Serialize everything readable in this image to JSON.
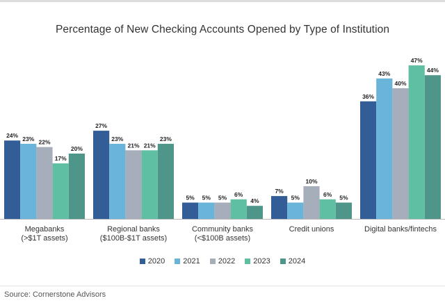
{
  "chart_data": {
    "type": "bar",
    "title": "Percentage of New Checking Accounts Opened by Type of Institution",
    "categories": [
      [
        "Megabanks",
        "(>$1T assets)"
      ],
      [
        "Regional banks",
        "($100B-$1T assets)"
      ],
      [
        "Community banks",
        "(<$100B assets)"
      ],
      [
        "Credit unions",
        ""
      ],
      [
        "Digital banks/fintechs",
        ""
      ]
    ],
    "series": [
      {
        "name": "2020",
        "color": "#335d96",
        "values": [
          24,
          27,
          5,
          7,
          36
        ]
      },
      {
        "name": "2021",
        "color": "#6ab4d9",
        "values": [
          23,
          23,
          5,
          5,
          43
        ]
      },
      {
        "name": "2022",
        "color": "#a6adbb",
        "values": [
          22,
          21,
          5,
          10,
          40
        ]
      },
      {
        "name": "2023",
        "color": "#5fbfa3",
        "values": [
          17,
          21,
          6,
          6,
          47
        ]
      },
      {
        "name": "2024",
        "color": "#4e968a",
        "values": [
          20,
          23,
          4,
          5,
          44
        ]
      }
    ],
    "value_suffix": "%",
    "ylim": [
      0,
      50
    ],
    "grid": false,
    "legend": "bottom"
  },
  "source": "Source: Cornerstone Advisors"
}
